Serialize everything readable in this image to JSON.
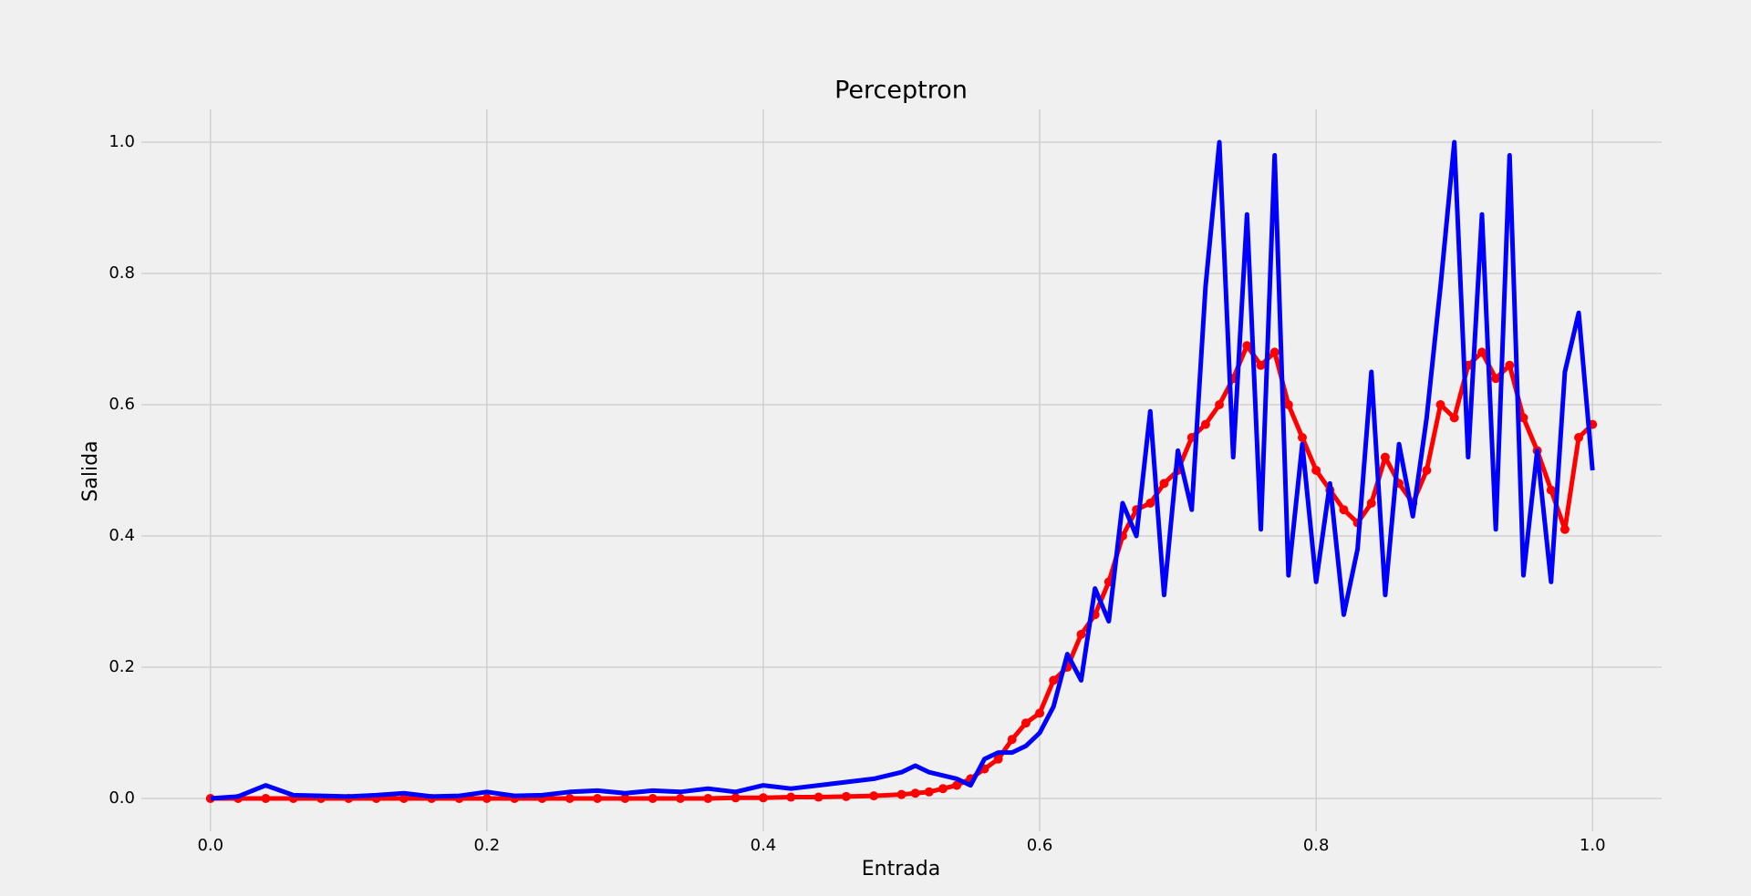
{
  "chart_data": {
    "type": "line",
    "title": "Perceptron",
    "xlabel": "Entrada",
    "ylabel": "Salida",
    "x": [
      0,
      0.02,
      0.04,
      0.06,
      0.08,
      0.1,
      0.12,
      0.14,
      0.16,
      0.18,
      0.2,
      0.22,
      0.24,
      0.26,
      0.28,
      0.3,
      0.32,
      0.34,
      0.36,
      0.38,
      0.4,
      0.42,
      0.44,
      0.46,
      0.48,
      0.5,
      0.51,
      0.52,
      0.53,
      0.54,
      0.55,
      0.56,
      0.57,
      0.58,
      0.59,
      0.6,
      0.61,
      0.62,
      0.63,
      0.64,
      0.65,
      0.66,
      0.67,
      0.68,
      0.69,
      0.7,
      0.71,
      0.72,
      0.73,
      0.74,
      0.75,
      0.76,
      0.77,
      0.78,
      0.79,
      0.8,
      0.81,
      0.82,
      0.83,
      0.84,
      0.85,
      0.86,
      0.87,
      0.88,
      0.89,
      0.9,
      0.91,
      0.92,
      0.93,
      0.94,
      0.95,
      0.96,
      0.97,
      0.98,
      0.99,
      1.0
    ],
    "series": [
      {
        "color": "#ff0000",
        "marker": true,
        "values": [
          0,
          0,
          0,
          0,
          0,
          0,
          0,
          0,
          0,
          0,
          0,
          0,
          0,
          0,
          0,
          0,
          0,
          0,
          0,
          0.001,
          0.001,
          0.002,
          0.002,
          0.003,
          0.004,
          0.006,
          0.008,
          0.01,
          0.015,
          0.02,
          0.03,
          0.045,
          0.06,
          0.09,
          0.115,
          0.13,
          0.18,
          0.2,
          0.25,
          0.28,
          0.33,
          0.4,
          0.44,
          0.45,
          0.48,
          0.5,
          0.55,
          0.57,
          0.6,
          0.64,
          0.69,
          0.66,
          0.68,
          0.6,
          0.55,
          0.5,
          0.47,
          0.44,
          0.42,
          0.45,
          0.52,
          0.48,
          0.45,
          0.5,
          0.6,
          0.58,
          0.66,
          0.68,
          0.64,
          0.66,
          0.58,
          0.53,
          0.47,
          0.41,
          0.55,
          0.57
        ]
      },
      {
        "color": "#0000ff",
        "marker": false,
        "values": [
          0,
          0.003,
          0.02,
          0.005,
          0.004,
          0.003,
          0.005,
          0.008,
          0.003,
          0.004,
          0.01,
          0.004,
          0.005,
          0.01,
          0.012,
          0.008,
          0.012,
          0.01,
          0.015,
          0.01,
          0.02,
          0.015,
          0.02,
          0.025,
          0.03,
          0.04,
          0.05,
          0.04,
          0.035,
          0.03,
          0.02,
          0.06,
          0.07,
          0.07,
          0.08,
          0.1,
          0.14,
          0.22,
          0.18,
          0.32,
          0.27,
          0.45,
          0.4,
          0.59,
          0.31,
          0.53,
          0.44,
          0.78,
          1.0,
          0.52,
          0.89,
          0.41,
          0.98,
          0.34,
          0.54,
          0.33,
          0.48,
          0.28,
          0.38,
          0.65,
          0.31,
          0.54,
          0.43,
          0.58,
          0.78,
          1.0,
          0.52,
          0.89,
          0.41,
          0.98,
          0.34,
          0.53,
          0.33,
          0.65,
          0.74,
          0.5
        ]
      }
    ],
    "xlim": [
      -0.05,
      1.05
    ],
    "ylim": [
      -0.05,
      1.05
    ],
    "xticks": [
      {
        "value": 0,
        "label": "0.0"
      },
      0.2,
      0.4,
      0.6,
      0.8,
      {
        "value": 1,
        "label": "1.0"
      }
    ],
    "yticks": [
      {
        "value": 0,
        "label": "0.0"
      },
      0.2,
      0.4,
      0.6,
      0.8,
      {
        "value": 1,
        "label": "1.0"
      }
    ],
    "grid": true
  }
}
